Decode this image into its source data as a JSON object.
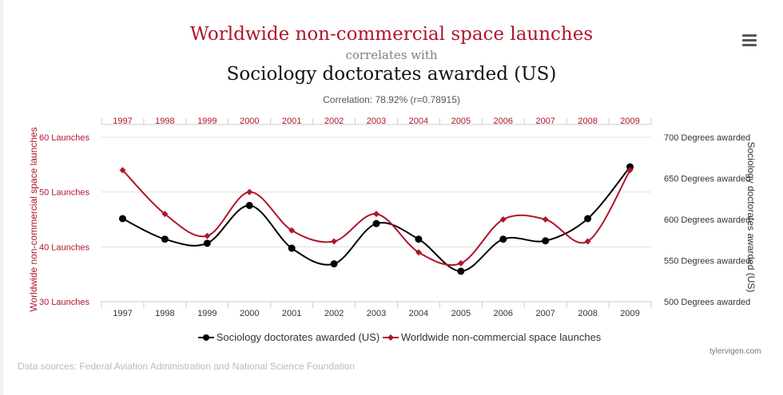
{
  "header": {
    "title_line1": "Worldwide non-commercial space launches",
    "title_line2": "correlates with",
    "title_line3": "Sociology doctorates awarded (US)",
    "correlation": "Correlation: 78.92% (r=0.78915)",
    "menu_icon": "hamburger-icon"
  },
  "colors": {
    "launches": "#b0162a",
    "doctorates": "#000000",
    "grid": "#e0e0e0",
    "axis_label_red": "#b0162a"
  },
  "chart_data": {
    "type": "line",
    "x": [
      "1997",
      "1998",
      "1999",
      "2000",
      "2001",
      "2002",
      "2003",
      "2004",
      "2005",
      "2006",
      "2007",
      "2008",
      "2009"
    ],
    "top_axis_labels": [
      "1997",
      "1998",
      "1999",
      "2000",
      "2001",
      "2002",
      "2003",
      "2004",
      "2005",
      "2006",
      "2007",
      "2008",
      "2009"
    ],
    "series": [
      {
        "name": "Sociology doctorates awarded (US)",
        "axis": "right",
        "values": [
          601,
          576,
          571,
          617,
          565,
          546,
          595,
          576,
          537,
          576,
          574,
          601,
          664
        ]
      },
      {
        "name": "Worldwide non-commercial space launches",
        "axis": "left",
        "values": [
          54,
          46,
          42,
          50,
          43,
          41,
          46,
          39,
          37,
          45,
          45,
          41,
          54
        ]
      }
    ],
    "y_left": {
      "label": "Worldwide non-commercial space launches",
      "range": [
        30,
        60
      ],
      "ticks": [
        30,
        40,
        50,
        60
      ],
      "tick_labels": [
        "30 Launches",
        "40 Launches",
        "50 Launches",
        "60 Launches"
      ]
    },
    "y_right": {
      "label": "Sociology doctorates awarded (US)",
      "range": [
        500,
        700
      ],
      "ticks": [
        500,
        550,
        600,
        650,
        700
      ],
      "tick_labels": [
        "500 Degrees awarded",
        "550 Degrees awarded",
        "600 Degrees awarded",
        "650 Degrees awarded",
        "700 Degrees awarded"
      ]
    },
    "grid": true,
    "legend": "bottom-center"
  },
  "legend": {
    "item1": "Sociology doctorates awarded (US)",
    "item2": "Worldwide non-commercial space launches"
  },
  "footer": {
    "credit": "tylervigen.com",
    "sources": "Data sources: Federal Aviation Administration and National Science Foundation"
  }
}
